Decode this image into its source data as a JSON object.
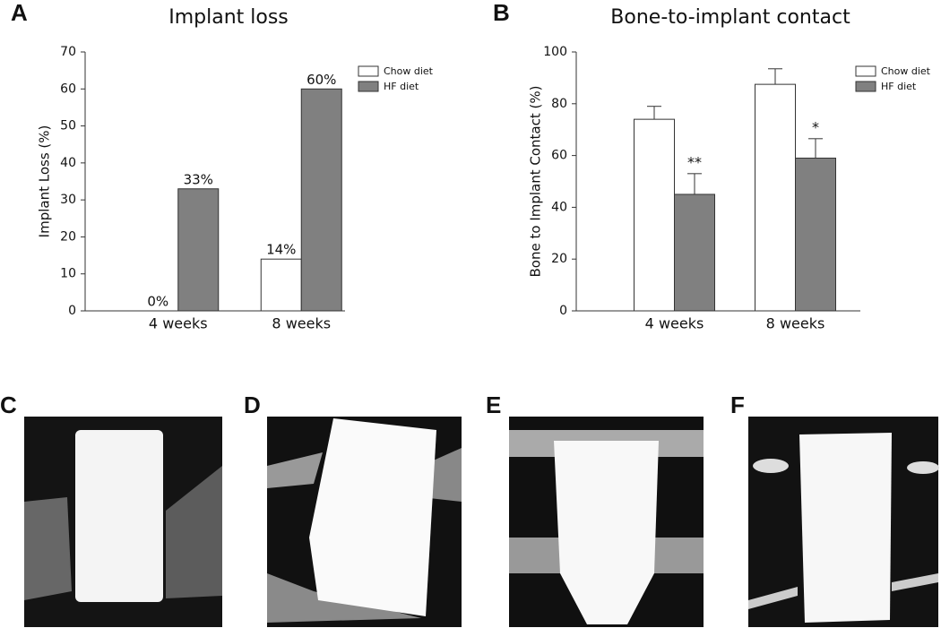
{
  "chart_data": [
    {
      "type": "bar",
      "panel": "A",
      "title": "Implant loss",
      "ylabel": "Implant Loss (%)",
      "categories": [
        "4 weeks",
        "8 weeks"
      ],
      "series": [
        {
          "name": "Chow diet",
          "color": "#ffffff",
          "values": [
            0,
            14
          ],
          "value_labels": [
            "0%",
            "14%"
          ]
        },
        {
          "name": "HF diet",
          "color": "#808080",
          "values": [
            33,
            60
          ],
          "value_labels": [
            "33%",
            "60%"
          ]
        }
      ],
      "ylim": [
        0,
        70
      ],
      "yticks": [
        0,
        10,
        20,
        30,
        40,
        50,
        60,
        70
      ],
      "legend": "top-right"
    },
    {
      "type": "bar",
      "panel": "B",
      "title": "Bone-to-implant contact",
      "ylabel": "Bone to Implant Contact (%)",
      "categories": [
        "4 weeks",
        "8 weeks"
      ],
      "series": [
        {
          "name": "Chow diet",
          "color": "#ffffff",
          "values": [
            74,
            87.5
          ],
          "errors": [
            5,
            6
          ]
        },
        {
          "name": "HF diet",
          "color": "#808080",
          "values": [
            45,
            59
          ],
          "errors": [
            8,
            7.5
          ],
          "markers": [
            "**",
            "*"
          ]
        }
      ],
      "ylim": [
        0,
        100
      ],
      "yticks": [
        0,
        20,
        40,
        60,
        80,
        100
      ],
      "legend": "top-right"
    }
  ],
  "image_panels": [
    "C",
    "D",
    "E",
    "F"
  ]
}
